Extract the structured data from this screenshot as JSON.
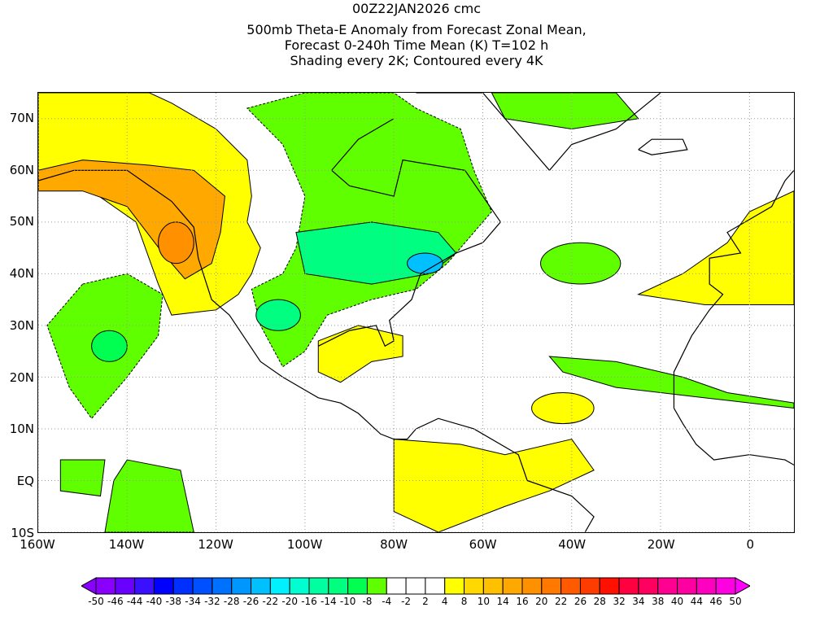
{
  "title": {
    "line1": "00Z22JAN2026 cmc",
    "line2": "500mb Theta-E Anomaly from Forecast Zonal Mean,",
    "line3": "Forecast 0-240h Time Mean (K) T=102 h",
    "line4": "Shading every 2K; Contoured every 4K"
  },
  "lat_labels": [
    "70N",
    "60N",
    "50N",
    "40N",
    "30N",
    "20N",
    "10N",
    "EQ",
    "10S"
  ],
  "lat_values": [
    70,
    60,
    50,
    40,
    30,
    20,
    10,
    0,
    -10
  ],
  "lon_labels": [
    "160W",
    "140W",
    "120W",
    "100W",
    "80W",
    "60W",
    "40W",
    "20W",
    "0"
  ],
  "lon_values": [
    -160,
    -140,
    -120,
    -100,
    -80,
    -60,
    -40,
    -20,
    0
  ],
  "colorbar": {
    "labels": [
      "-50",
      "-46",
      "-44",
      "-40",
      "-38",
      "-34",
      "-32",
      "-28",
      "-26",
      "-22",
      "-20",
      "-16",
      "-14",
      "-10",
      "-8",
      "-4",
      "-2",
      "2",
      "4",
      "8",
      "10",
      "14",
      "16",
      "20",
      "22",
      "26",
      "28",
      "32",
      "34",
      "38",
      "40",
      "44",
      "46",
      "50"
    ],
    "colors": [
      "#8a00ff",
      "#6a00ff",
      "#3a10ff",
      "#0000ff",
      "#0030ff",
      "#0050ff",
      "#0070ff",
      "#0096ff",
      "#00c0ff",
      "#00f0ff",
      "#00ffd0",
      "#00ffa0",
      "#00ff80",
      "#00ff50",
      "#60ff00",
      "#ffffff",
      "#ffffff",
      "#ffffff",
      "#ffff00",
      "#ffd800",
      "#ffc000",
      "#ffa800",
      "#ff9000",
      "#ff7800",
      "#ff5a00",
      "#ff3c00",
      "#ff1000",
      "#ff0040",
      "#ff0060",
      "#ff0090",
      "#ff00a0",
      "#ff00c0",
      "#ff00e0"
    ],
    "low_arrow": "#8a00ff",
    "high_arrow": "#ff00ff"
  }
}
